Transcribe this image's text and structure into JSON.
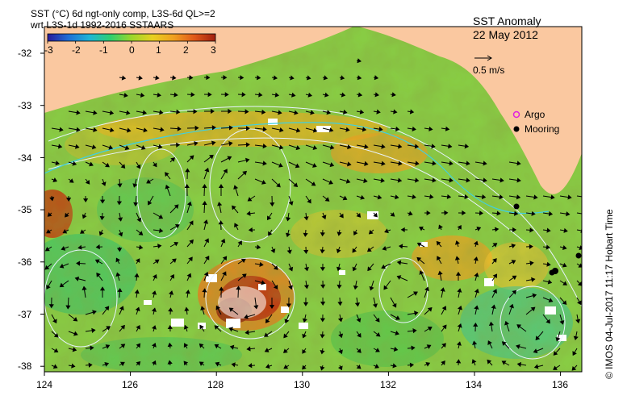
{
  "header": {
    "line1": "SST (°C) 6d ngt-only comp, L3S-6d QL>=2",
    "line2": "wrt L3S-1d 1992-2016 SSTAARS"
  },
  "title": {
    "line1": "SST Anomaly",
    "line2": "22 May 2012"
  },
  "colorbar": {
    "ticks": [
      "-3",
      "-2",
      "-1",
      "0",
      "1",
      "2",
      "3"
    ],
    "colors": [
      "#2a1b9a",
      "#1f6fd6",
      "#1fb5d6",
      "#2fcf6f",
      "#9ad62a",
      "#e8d020",
      "#f0a020",
      "#e05818",
      "#a02010"
    ]
  },
  "velocity_legend": {
    "label": "0.5 m/s"
  },
  "legend": {
    "argo": {
      "label": "Argo",
      "color": "#e020e0"
    },
    "mooring": {
      "label": "Mooring",
      "color": "#000000"
    }
  },
  "axes": {
    "x_ticks": [
      "124",
      "126",
      "128",
      "130",
      "132",
      "134",
      "136"
    ],
    "y_ticks": [
      "-32",
      "-33",
      "-34",
      "-35",
      "-36",
      "-37",
      "-38"
    ]
  },
  "credit": "© IMOS 04-Jul-2017 11:17 Hobart Time",
  "colors": {
    "land": "#fac8a0",
    "mean_anomaly": "#88cc44",
    "contour": "#e8f4ff",
    "current_path": "#40d0e0"
  }
}
